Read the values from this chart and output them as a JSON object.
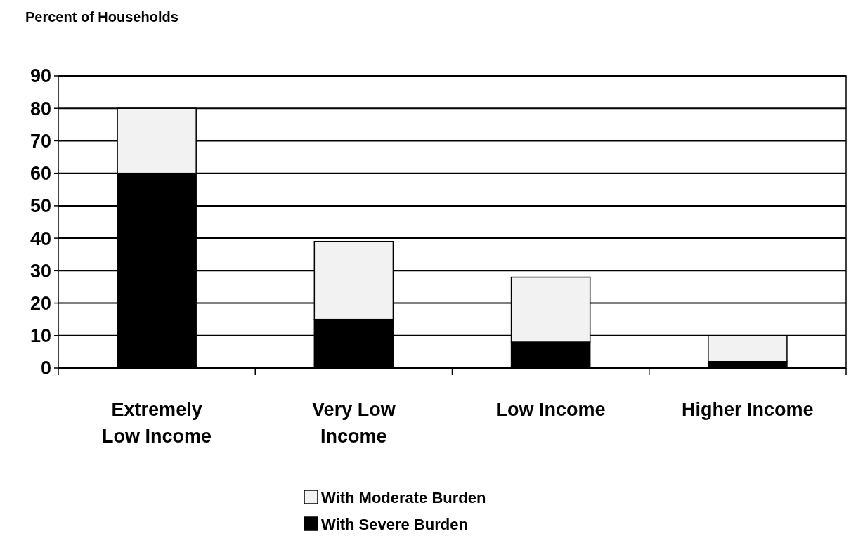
{
  "chart_data": {
    "type": "bar",
    "ylabel": "Percent of Households",
    "categories": [
      "Extremely Low Income",
      "Very Low Income",
      "Low Income",
      "Higher Income"
    ],
    "stacked": true,
    "series": [
      {
        "name": "With Severe Burden",
        "color": "#000000",
        "values": [
          60,
          15,
          8,
          2
        ]
      },
      {
        "name": "With Moderate Burden",
        "color": "#f2f2f2",
        "values": [
          20,
          24,
          20,
          8
        ]
      }
    ],
    "ylim": [
      0,
      90
    ],
    "yticks": [
      0,
      10,
      20,
      30,
      40,
      50,
      60,
      70,
      80,
      90
    ],
    "grid": "y",
    "legend": "bottom"
  }
}
